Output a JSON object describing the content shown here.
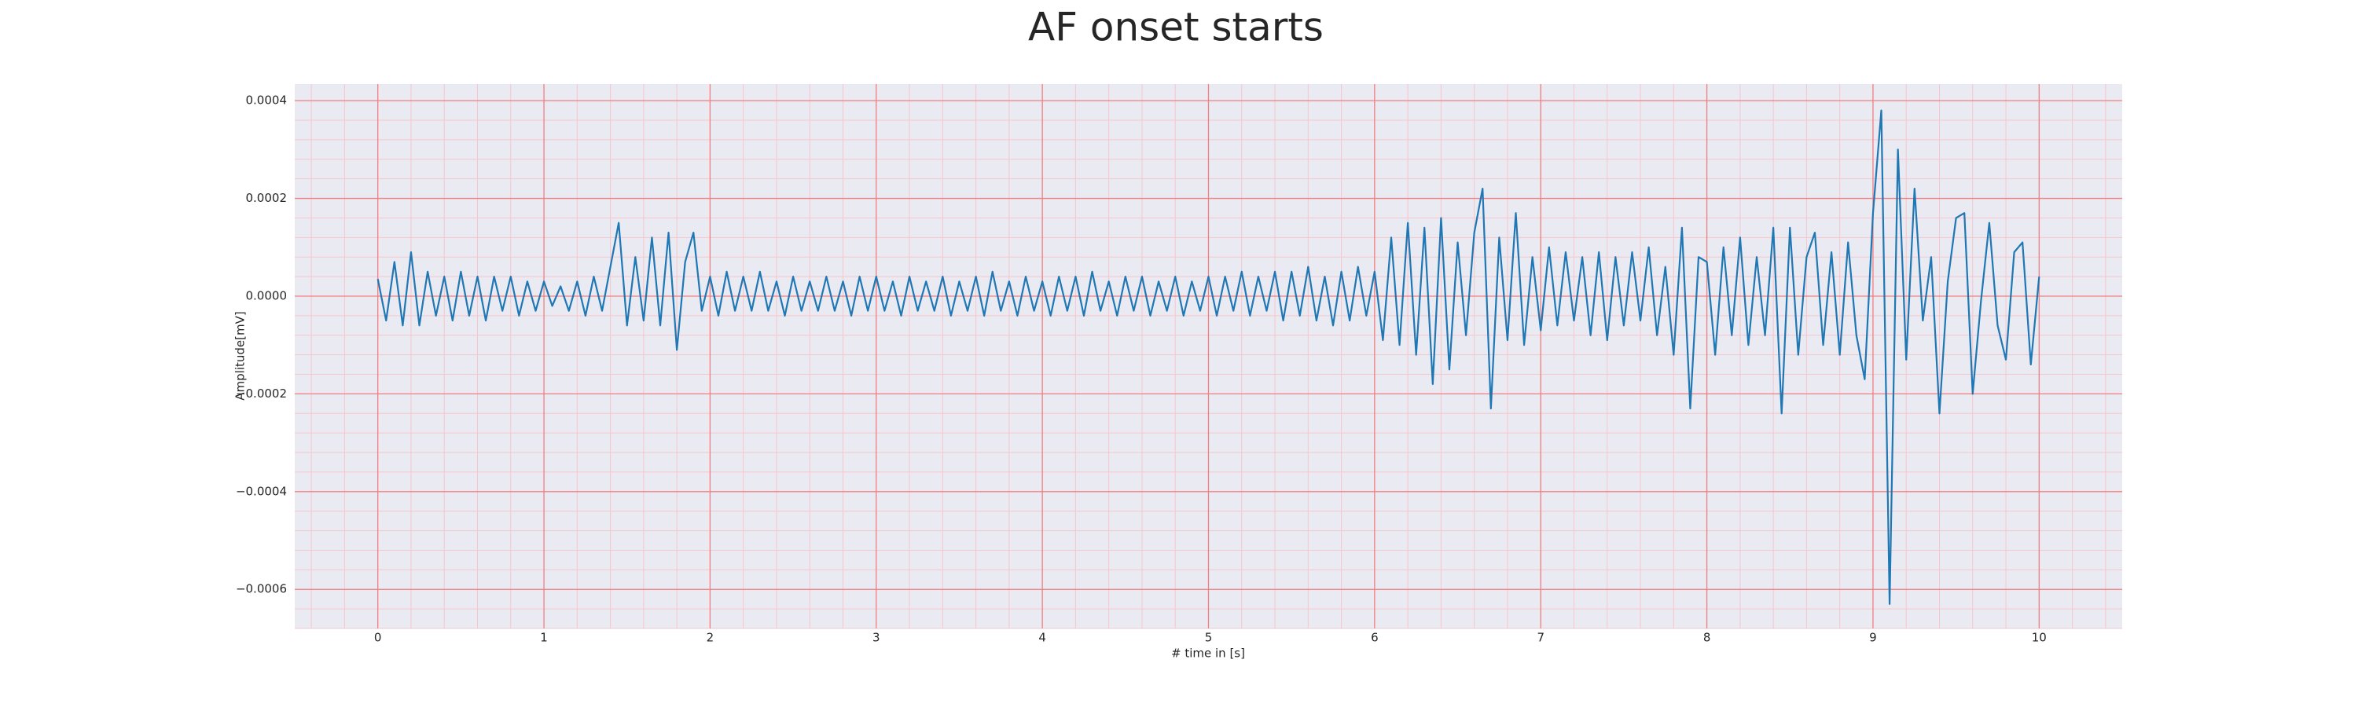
{
  "chart_data": {
    "type": "line",
    "title": "AF onset starts",
    "xlabel": "# time in [s]",
    "ylabel": "Amplitude[mV]",
    "x": [
      0,
      0.05,
      0.1,
      0.15,
      0.2,
      0.25,
      0.3,
      0.35,
      0.4,
      0.45,
      0.5,
      0.55,
      0.6,
      0.65,
      0.7,
      0.75,
      0.8,
      0.85,
      0.9,
      0.95,
      1,
      1.05,
      1.1,
      1.15,
      1.2,
      1.25,
      1.3,
      1.35,
      1.4,
      1.45,
      1.5,
      1.55,
      1.6,
      1.65,
      1.7,
      1.75,
      1.8,
      1.85,
      1.9,
      1.95,
      2,
      2.05,
      2.1,
      2.15,
      2.2,
      2.25,
      2.3,
      2.35,
      2.4,
      2.45,
      2.5,
      2.55,
      2.6,
      2.65,
      2.7,
      2.75,
      2.8,
      2.85,
      2.9,
      2.95,
      3,
      3.05,
      3.1,
      3.15,
      3.2,
      3.25,
      3.3,
      3.35,
      3.4,
      3.45,
      3.5,
      3.55,
      3.6,
      3.65,
      3.7,
      3.75,
      3.8,
      3.85,
      3.9,
      3.95,
      4,
      4.05,
      4.1,
      4.15,
      4.2,
      4.25,
      4.3,
      4.35,
      4.4,
      4.45,
      4.5,
      4.55,
      4.6,
      4.65,
      4.7,
      4.75,
      4.8,
      4.85,
      4.9,
      4.95,
      5,
      5.05,
      5.1,
      5.15,
      5.2,
      5.25,
      5.3,
      5.35,
      5.4,
      5.45,
      5.5,
      5.55,
      5.6,
      5.65,
      5.7,
      5.75,
      5.8,
      5.85,
      5.9,
      5.95,
      6,
      6.05,
      6.1,
      6.15,
      6.2,
      6.25,
      6.3,
      6.35,
      6.4,
      6.45,
      6.5,
      6.55,
      6.6,
      6.65,
      6.7,
      6.75,
      6.8,
      6.85,
      6.9,
      6.95,
      7,
      7.05,
      7.1,
      7.15,
      7.2,
      7.25,
      7.3,
      7.35,
      7.4,
      7.45,
      7.5,
      7.55,
      7.6,
      7.65,
      7.7,
      7.75,
      7.8,
      7.85,
      7.9,
      7.95,
      8,
      8.05,
      8.1,
      8.15,
      8.2,
      8.25,
      8.3,
      8.35,
      8.4,
      8.45,
      8.5,
      8.55,
      8.6,
      8.65,
      8.7,
      8.75,
      8.8,
      8.85,
      8.9,
      8.95,
      9,
      9.05,
      9.1,
      9.15,
      9.2,
      9.25,
      9.3,
      9.35,
      9.4,
      9.45,
      9.5,
      9.55,
      9.6,
      9.65,
      9.7,
      9.75,
      9.8,
      9.85,
      9.9,
      9.95,
      10
    ],
    "series": [
      {
        "color": "#1f77b4",
        "values": [
          3.5e-05,
          -5e-05,
          7e-05,
          -6e-05,
          9e-05,
          -6e-05,
          5e-05,
          -4e-05,
          4e-05,
          -5e-05,
          5e-05,
          -4e-05,
          4e-05,
          -5e-05,
          4e-05,
          -3e-05,
          4e-05,
          -4e-05,
          3e-05,
          -3e-05,
          3e-05,
          -2e-05,
          2e-05,
          -3e-05,
          3e-05,
          -4e-05,
          4e-05,
          -3e-05,
          6e-05,
          0.00015,
          -6e-05,
          8e-05,
          -5e-05,
          0.00012,
          -6e-05,
          0.00013,
          -0.00011,
          7e-05,
          0.00013,
          -3e-05,
          4e-05,
          -4e-05,
          5e-05,
          -3e-05,
          4e-05,
          -3e-05,
          5e-05,
          -3e-05,
          3e-05,
          -4e-05,
          4e-05,
          -3e-05,
          3e-05,
          -3e-05,
          4e-05,
          -3e-05,
          3e-05,
          -4e-05,
          4e-05,
          -3e-05,
          4e-05,
          -3e-05,
          3e-05,
          -4e-05,
          4e-05,
          -3e-05,
          3e-05,
          -3e-05,
          4e-05,
          -4e-05,
          3e-05,
          -3e-05,
          4e-05,
          -4e-05,
          5e-05,
          -3e-05,
          3e-05,
          -4e-05,
          4e-05,
          -3e-05,
          3e-05,
          -4e-05,
          4e-05,
          -3e-05,
          4e-05,
          -4e-05,
          5e-05,
          -3e-05,
          3e-05,
          -4e-05,
          4e-05,
          -3e-05,
          4e-05,
          -4e-05,
          3e-05,
          -3e-05,
          4e-05,
          -4e-05,
          3e-05,
          -3e-05,
          4e-05,
          -4e-05,
          4e-05,
          -3e-05,
          5e-05,
          -4e-05,
          4e-05,
          -3e-05,
          5e-05,
          -5e-05,
          5e-05,
          -4e-05,
          6e-05,
          -5e-05,
          4e-05,
          -6e-05,
          5e-05,
          -5e-05,
          6e-05,
          -4e-05,
          5e-05,
          -9e-05,
          0.00012,
          -0.0001,
          0.00015,
          -0.00012,
          0.00014,
          -0.00018,
          0.00016,
          -0.00015,
          0.00011,
          -8e-05,
          0.00013,
          0.00022,
          -0.00023,
          0.00012,
          -9e-05,
          0.00017,
          -0.0001,
          8e-05,
          -7e-05,
          0.0001,
          -6e-05,
          9e-05,
          -5e-05,
          8e-05,
          -8e-05,
          9e-05,
          -9e-05,
          8e-05,
          -6e-05,
          9e-05,
          -5e-05,
          0.0001,
          -8e-05,
          6e-05,
          -0.00012,
          0.00014,
          -0.00023,
          8e-05,
          7e-05,
          -0.00012,
          0.0001,
          -8e-05,
          0.00012,
          -0.0001,
          8e-05,
          -8e-05,
          0.00014,
          -0.00024,
          0.00014,
          -0.00012,
          8e-05,
          0.00013,
          -0.0001,
          9e-05,
          -0.00012,
          0.00011,
          -8e-05,
          -0.00017,
          0.00017,
          0.00038,
          -0.00063,
          0.0003,
          -0.00013,
          0.00022,
          -5e-05,
          8e-05,
          -0.00024,
          3e-05,
          0.00016,
          0.00017,
          -0.0002,
          -1e-05,
          0.00015,
          -6e-05,
          -0.00013,
          9e-05,
          0.00011,
          -0.00014,
          4e-05
        ]
      }
    ],
    "xlim": [
      -0.5,
      10.5
    ],
    "xticks": [
      0,
      1,
      2,
      3,
      4,
      5,
      6,
      7,
      8,
      9,
      10
    ],
    "ylim": [
      -0.00068,
      0.000434
    ],
    "yticks": [
      {
        "value": -0.0006,
        "label": "−0.0006"
      },
      {
        "value": -0.0004,
        "label": "−0.0004"
      },
      {
        "value": -0.0002,
        "label": "−0.0002"
      },
      {
        "value": 0,
        "label": "0.0000"
      },
      {
        "value": 0.0002,
        "label": "0.0002"
      },
      {
        "value": 0.0004,
        "label": "0.0004"
      }
    ],
    "grid": true,
    "grid_color": "#f08080",
    "minor_grid": true,
    "minor_grid_color": "#f6c6cc",
    "minor_divisions": 5,
    "background": "#eaeaf2"
  }
}
